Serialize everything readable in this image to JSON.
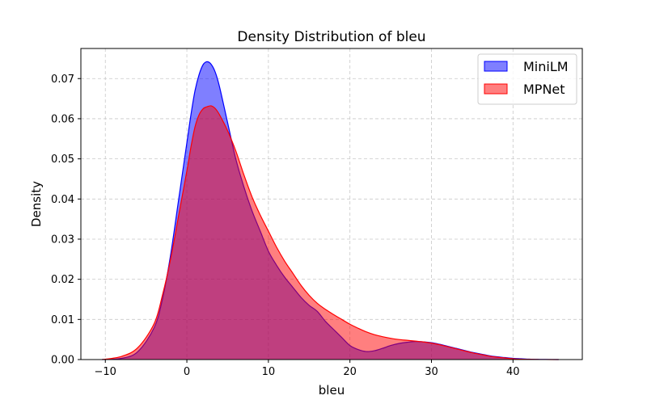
{
  "chart_data": {
    "type": "area",
    "title": "Density Distribution of bleu",
    "xlabel": "bleu",
    "ylabel": "Density",
    "xlim": [
      -13.0,
      48.5
    ],
    "ylim": [
      0,
      0.0775
    ],
    "xticks": [
      -10,
      0,
      10,
      20,
      30,
      40
    ],
    "yticks": [
      0.0,
      0.01,
      0.02,
      0.03,
      0.04,
      0.05,
      0.06,
      0.07
    ],
    "ytick_labels": [
      "0.00",
      "0.01",
      "0.02",
      "0.03",
      "0.04",
      "0.05",
      "0.06",
      "0.07"
    ],
    "grid": true,
    "legend_position": "top-right",
    "series": [
      {
        "name": "MiniLM",
        "color": "#0000ff",
        "fill_color": "#0000ff",
        "fill_opacity": 0.5,
        "x": [
          -10.4,
          -8,
          -6,
          -4,
          -3,
          -2,
          -1,
          0,
          0.5,
          1,
          1.5,
          2,
          2.5,
          3,
          3.5,
          4,
          5,
          6,
          7,
          8,
          9,
          10,
          11,
          12,
          13,
          14,
          15,
          16,
          17,
          18,
          19,
          20,
          21,
          22,
          23,
          24,
          25,
          26,
          27,
          28,
          29,
          30,
          31,
          32,
          33,
          34,
          35,
          36,
          37,
          38,
          39,
          40,
          41,
          42,
          43,
          44,
          45.6
        ],
        "y": [
          0.0,
          0.0003,
          0.002,
          0.008,
          0.015,
          0.026,
          0.04,
          0.054,
          0.061,
          0.067,
          0.071,
          0.0735,
          0.0742,
          0.0735,
          0.0715,
          0.068,
          0.059,
          0.05,
          0.043,
          0.037,
          0.032,
          0.027,
          0.0235,
          0.0205,
          0.018,
          0.0155,
          0.0135,
          0.012,
          0.0095,
          0.0075,
          0.0055,
          0.0035,
          0.0025,
          0.002,
          0.0022,
          0.0028,
          0.0035,
          0.004,
          0.0043,
          0.0045,
          0.0044,
          0.0042,
          0.0038,
          0.0033,
          0.0028,
          0.0023,
          0.0018,
          0.0014,
          0.001,
          0.0007,
          0.0005,
          0.0003,
          0.0002,
          0.0001,
          5e-05,
          2e-05,
          0.0
        ]
      },
      {
        "name": "MPNet",
        "color": "#ff0000",
        "fill_color": "#ff0000",
        "fill_opacity": 0.5,
        "x": [
          -10.4,
          -8,
          -6,
          -4,
          -3,
          -2,
          -1,
          0,
          0.5,
          1,
          1.5,
          2,
          2.5,
          3,
          3.5,
          4,
          5,
          6,
          7,
          8,
          9,
          10,
          11,
          12,
          13,
          14,
          15,
          16,
          17,
          18,
          19,
          20,
          21,
          22,
          23,
          24,
          25,
          26,
          27,
          28,
          29,
          30,
          31,
          32,
          33,
          34,
          35,
          36,
          37,
          38,
          39,
          40,
          41,
          42,
          43,
          44,
          45.6
        ],
        "y": [
          0.0,
          0.0008,
          0.003,
          0.009,
          0.016,
          0.025,
          0.036,
          0.047,
          0.053,
          0.058,
          0.061,
          0.0625,
          0.063,
          0.0632,
          0.0625,
          0.061,
          0.057,
          0.052,
          0.046,
          0.0405,
          0.036,
          0.032,
          0.028,
          0.0245,
          0.0215,
          0.0185,
          0.016,
          0.014,
          0.0125,
          0.0112,
          0.01,
          0.0088,
          0.0078,
          0.0069,
          0.0062,
          0.0057,
          0.0053,
          0.005,
          0.0048,
          0.0046,
          0.0044,
          0.0041,
          0.0037,
          0.0032,
          0.0027,
          0.0022,
          0.0017,
          0.0013,
          0.0009,
          0.0006,
          0.0004,
          0.0002,
          0.0001,
          5e-05,
          2e-05,
          1e-05,
          0.0
        ]
      }
    ]
  }
}
